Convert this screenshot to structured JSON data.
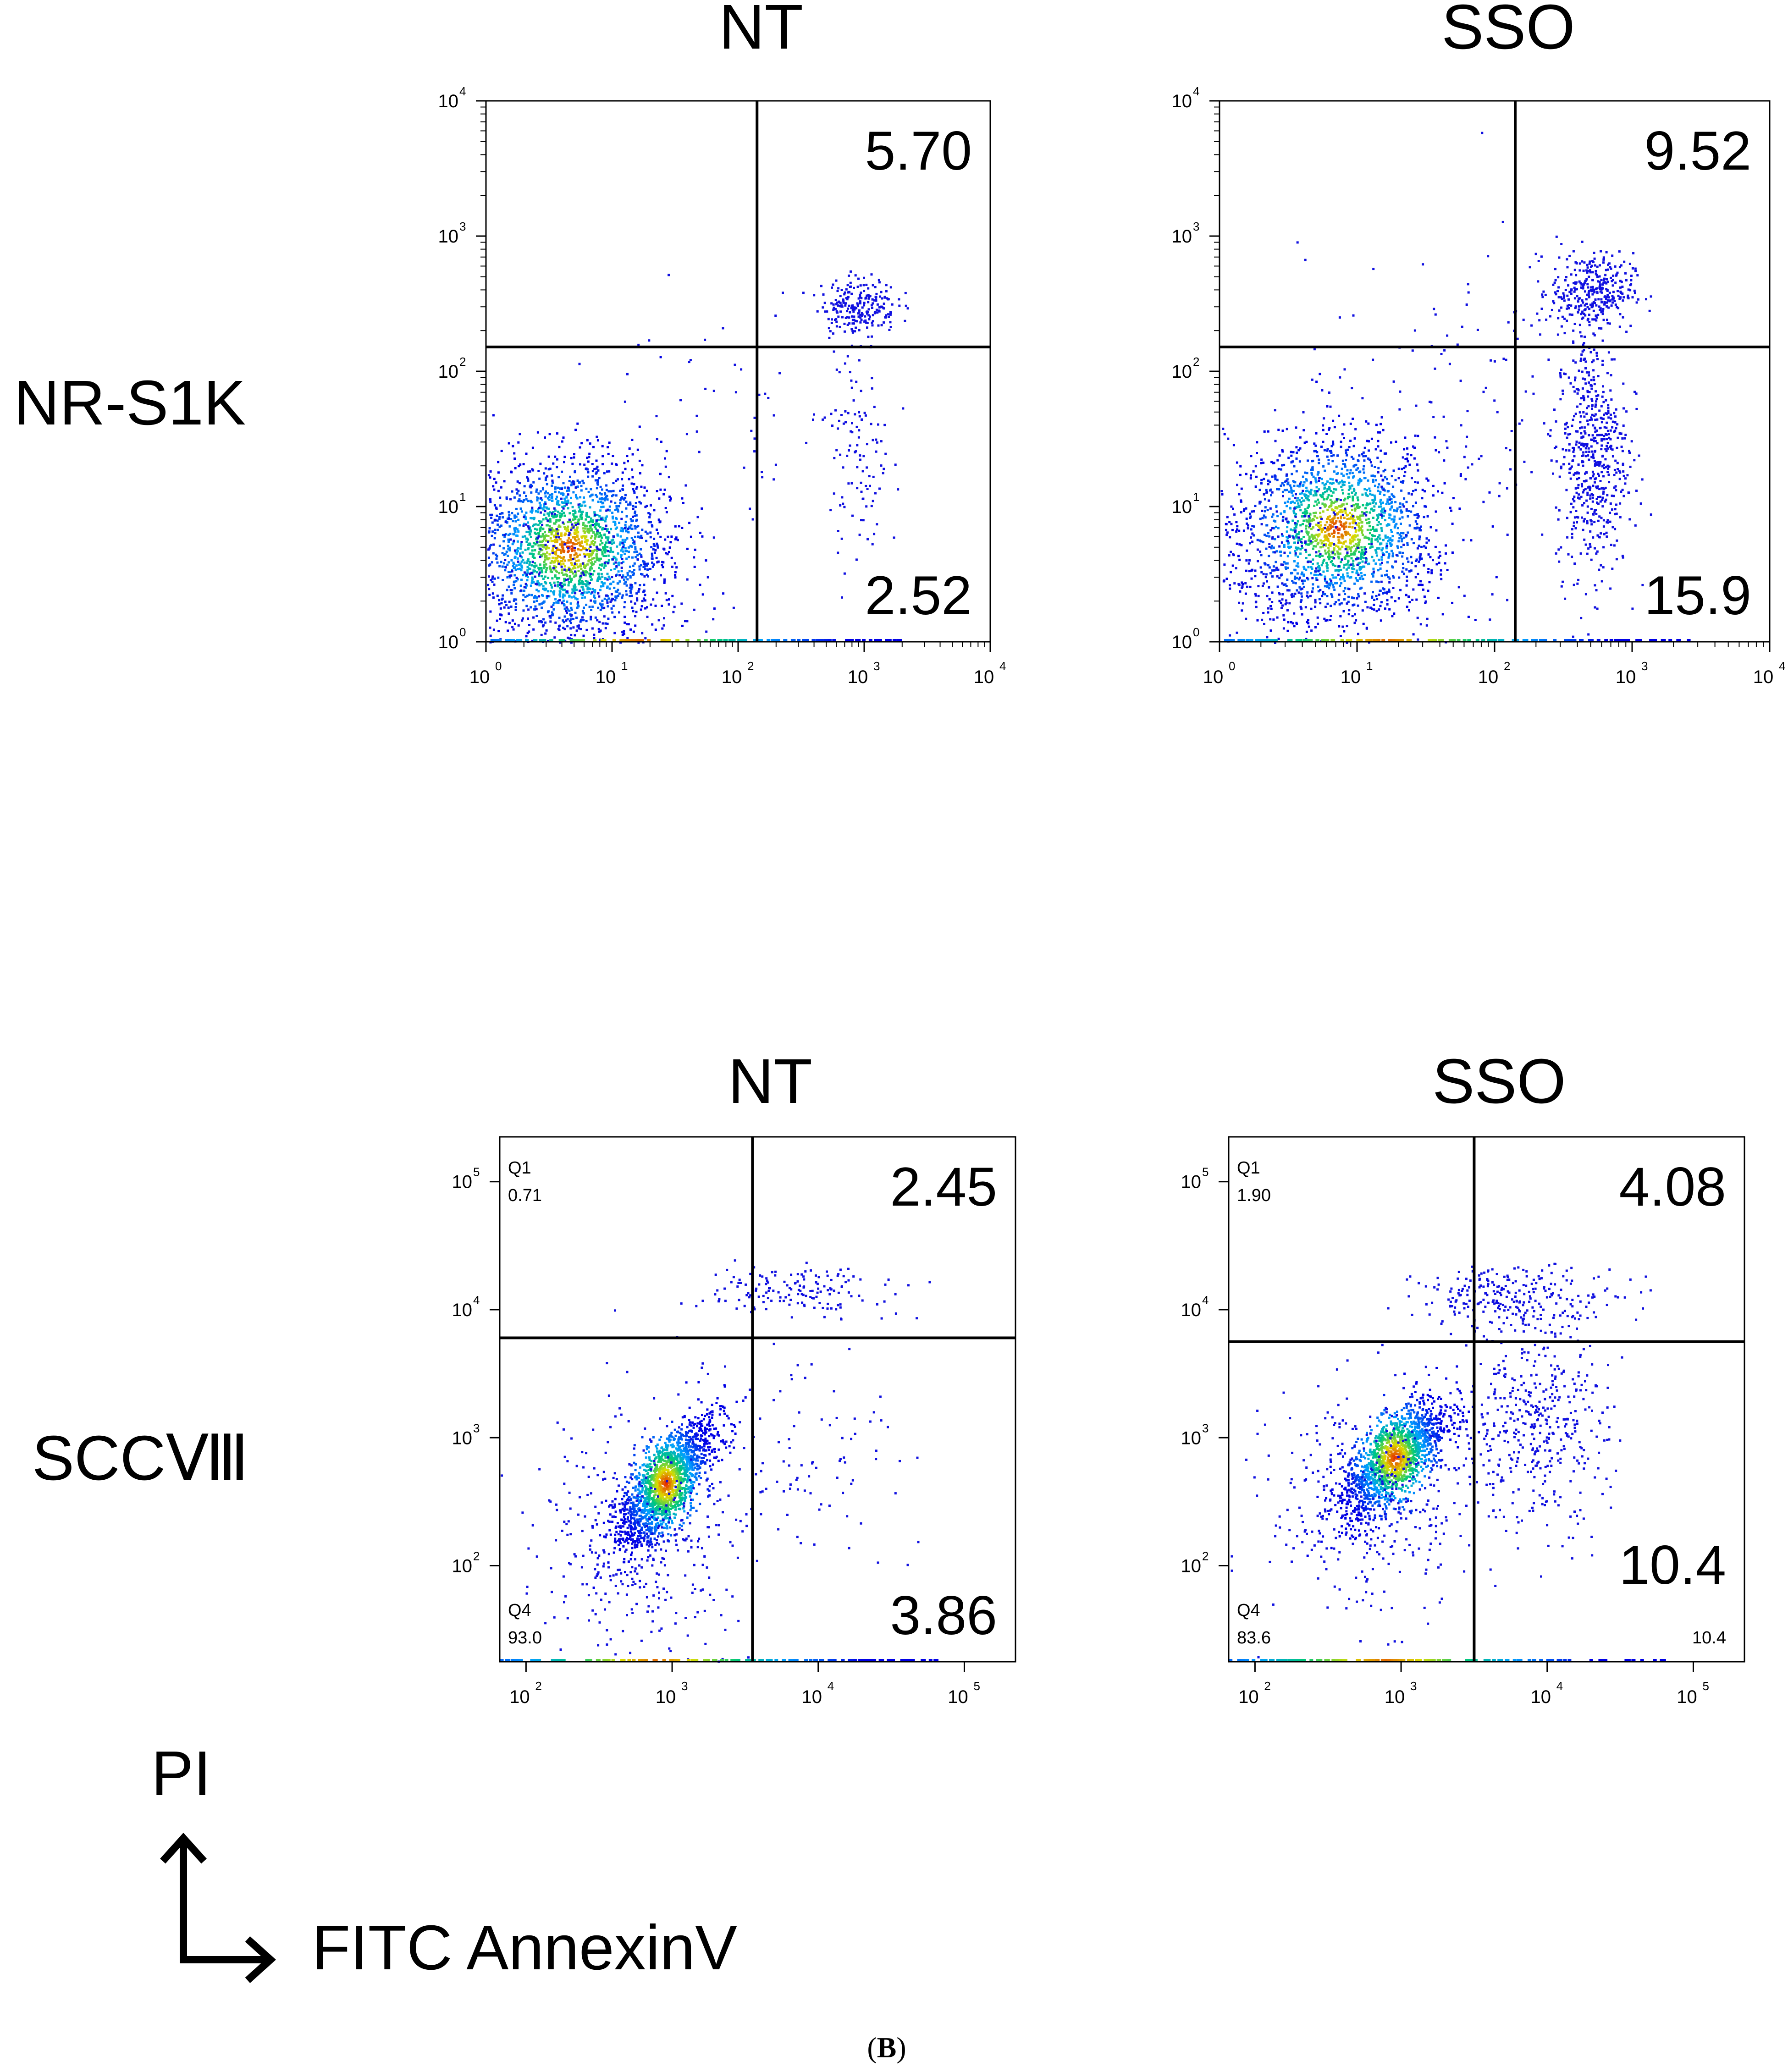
{
  "figure": {
    "caption_open": "(",
    "caption_letter": "B",
    "caption_close": ")",
    "legend": {
      "y_axis": "PI",
      "x_axis": "FITC AnnexinV"
    },
    "rows": [
      {
        "label": "NR-S1K"
      },
      {
        "label": "SCCⅧ"
      }
    ],
    "col_titles": [
      "NT",
      "SSO",
      "NT",
      "SSO"
    ]
  },
  "chart_data": [
    {
      "type": "scatter",
      "title": "NT",
      "row_label": "NR-S1K",
      "axis_style": "log_minor_ticks",
      "x_log_range": [
        0,
        4
      ],
      "y_log_range": [
        0,
        4
      ],
      "x_ticks": [
        0,
        1,
        2,
        3,
        4
      ],
      "y_ticks": [
        0,
        1,
        2,
        3,
        4
      ],
      "x_tick_labels": [
        "10",
        "10",
        "10",
        "10",
        "10"
      ],
      "x_tick_exps": [
        "0",
        "1",
        "2",
        "3",
        "4"
      ],
      "y_tick_labels": [
        "10",
        "10",
        "10",
        "10",
        "10"
      ],
      "y_tick_exps": [
        "0",
        "1",
        "2",
        "3",
        "4"
      ],
      "gate": {
        "x": 2.15,
        "y": 2.18
      },
      "quadrant_values": {
        "upper_right": "5.70",
        "lower_right": "2.52"
      },
      "small_labels": {},
      "clusters": [
        {
          "cx": 0.65,
          "cy": 0.7,
          "sx": 0.38,
          "sy": 0.33,
          "n": 2000,
          "core": true
        },
        {
          "cx": 0.55,
          "cy": 0.45,
          "sx": 0.5,
          "sy": 0.45,
          "n": 420
        },
        {
          "cx": 2.95,
          "cy": 2.5,
          "sx": 0.15,
          "sy": 0.1,
          "n": 230
        },
        {
          "cx": 2.95,
          "cy": 1.4,
          "sx": 0.12,
          "sy": 0.45,
          "n": 110
        },
        {
          "cx": 2.0,
          "cy": 1.6,
          "sx": 0.55,
          "sy": 0.6,
          "n": 60
        }
      ]
    },
    {
      "type": "scatter",
      "title": "SSO",
      "row_label": "NR-S1K",
      "axis_style": "log_minor_ticks",
      "x_log_range": [
        0,
        4
      ],
      "y_log_range": [
        0,
        4
      ],
      "x_ticks": [
        0,
        1,
        2,
        3,
        4
      ],
      "y_ticks": [
        0,
        1,
        2,
        3,
        4
      ],
      "x_tick_labels": [
        "10",
        "10",
        "10",
        "10",
        "10"
      ],
      "x_tick_exps": [
        "0",
        "1",
        "2",
        "3",
        "4"
      ],
      "y_tick_labels": [
        "10",
        "10",
        "10",
        "10",
        "10"
      ],
      "y_tick_exps": [
        "0",
        "1",
        "2",
        "3",
        "4"
      ],
      "gate": {
        "x": 2.15,
        "y": 2.18
      },
      "quadrant_values": {
        "upper_right": "9.52",
        "lower_right": "15.9"
      },
      "small_labels": {},
      "clusters": [
        {
          "cx": 0.85,
          "cy": 0.85,
          "sx": 0.35,
          "sy": 0.33,
          "n": 1700,
          "core": true
        },
        {
          "cx": 0.6,
          "cy": 0.5,
          "sx": 0.5,
          "sy": 0.45,
          "n": 380
        },
        {
          "cx": 2.7,
          "cy": 2.6,
          "sx": 0.15,
          "sy": 0.14,
          "n": 340
        },
        {
          "cx": 2.7,
          "cy": 1.4,
          "sx": 0.13,
          "sy": 0.45,
          "n": 560
        },
        {
          "cx": 1.7,
          "cy": 1.8,
          "sx": 0.55,
          "sy": 0.55,
          "n": 120
        }
      ]
    },
    {
      "type": "scatter",
      "title": "NT",
      "row_label": "SCCⅧ",
      "axis_style": "log_plain",
      "x_log_range": [
        1.82,
        5.35
      ],
      "y_log_range": [
        1.25,
        5.35
      ],
      "x_ticks": [
        2,
        3,
        4,
        5
      ],
      "y_ticks": [
        2,
        3,
        4,
        5
      ],
      "x_tick_labels": [
        "10",
        "10",
        "10",
        "10"
      ],
      "x_tick_exps": [
        "2",
        "3",
        "4",
        "5"
      ],
      "y_tick_labels": [
        "10",
        "10",
        "10",
        "10"
      ],
      "y_tick_exps": [
        "2",
        "3",
        "4",
        "5"
      ],
      "gate": {
        "x": 3.55,
        "y": 3.78
      },
      "quadrant_values": {
        "upper_right": "2.45",
        "lower_right": "3.86"
      },
      "small_labels": {
        "q1": "Q1",
        "q1_value": "0.71",
        "q4": "Q4",
        "q4_value": "93.0"
      },
      "clusters": [
        {
          "cx": 2.95,
          "cy": 2.65,
          "sx": 0.16,
          "sy": 0.28,
          "n": 1800,
          "core": true,
          "tilt": 1.1
        },
        {
          "cx": 2.8,
          "cy": 2.3,
          "sx": 0.35,
          "sy": 0.45,
          "n": 400
        },
        {
          "cx": 3.85,
          "cy": 4.15,
          "sx": 0.3,
          "sy": 0.1,
          "n": 150
        },
        {
          "cx": 3.9,
          "cy": 2.9,
          "sx": 0.3,
          "sy": 0.45,
          "n": 90
        }
      ]
    },
    {
      "type": "scatter",
      "title": "SSO",
      "row_label": "SCCⅧ",
      "axis_style": "log_plain",
      "x_log_range": [
        1.82,
        5.35
      ],
      "y_log_range": [
        1.25,
        5.35
      ],
      "x_ticks": [
        2,
        3,
        4,
        5
      ],
      "y_ticks": [
        2,
        3,
        4,
        5
      ],
      "x_tick_labels": [
        "10",
        "10",
        "10",
        "10"
      ],
      "x_tick_exps": [
        "2",
        "3",
        "4",
        "5"
      ],
      "y_tick_labels": [
        "10",
        "10",
        "10",
        "10"
      ],
      "y_tick_exps": [
        "2",
        "3",
        "4",
        "5"
      ],
      "gate": {
        "x": 3.5,
        "y": 3.75
      },
      "quadrant_values": {
        "upper_right": "4.08",
        "lower_right": "10.4"
      },
      "small_labels": {
        "q1": "Q1",
        "q1_value": "1.90",
        "q4": "Q4",
        "q4_value": "83.6",
        "q3_value": "10.4"
      },
      "clusters": [
        {
          "cx": 2.95,
          "cy": 2.85,
          "sx": 0.18,
          "sy": 0.28,
          "n": 1600,
          "core": true,
          "tilt": 1.0
        },
        {
          "cx": 2.8,
          "cy": 2.5,
          "sx": 0.35,
          "sy": 0.45,
          "n": 380
        },
        {
          "cx": 3.8,
          "cy": 4.1,
          "sx": 0.35,
          "sy": 0.12,
          "n": 260
        },
        {
          "cx": 3.9,
          "cy": 3.1,
          "sx": 0.25,
          "sy": 0.4,
          "n": 420
        }
      ]
    }
  ]
}
